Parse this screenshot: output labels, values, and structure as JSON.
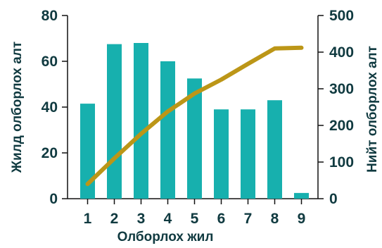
{
  "chart_data": {
    "type": "bar+line",
    "categories": [
      "1",
      "2",
      "3",
      "4",
      "5",
      "6",
      "7",
      "8",
      "9"
    ],
    "xlabel": "Олборлох жил",
    "ylabel_left": "Жилд олборлох алт",
    "ylabel_right": "Нийт олборлох алт",
    "ylim_left": [
      0,
      80
    ],
    "ylim_right": [
      0,
      500
    ],
    "yticks_left": [
      "0",
      "20",
      "40",
      "60",
      "80"
    ],
    "yticks_right": [
      "0",
      "100",
      "200",
      "300",
      "400",
      "500"
    ],
    "grid": false,
    "series": [
      {
        "type": "bar",
        "axis": "left",
        "values": [
          41.5,
          67.5,
          68,
          60,
          52.5,
          39,
          39,
          43,
          2.5
        ]
      },
      {
        "type": "line",
        "axis": "right",
        "values": [
          40,
          110,
          177,
          238,
          287,
          325,
          368,
          410,
          412
        ]
      }
    ],
    "colors": {
      "bar": "#17b0ae",
      "line": "#bc9617",
      "text": "#103a40",
      "axis": "#111111"
    }
  }
}
